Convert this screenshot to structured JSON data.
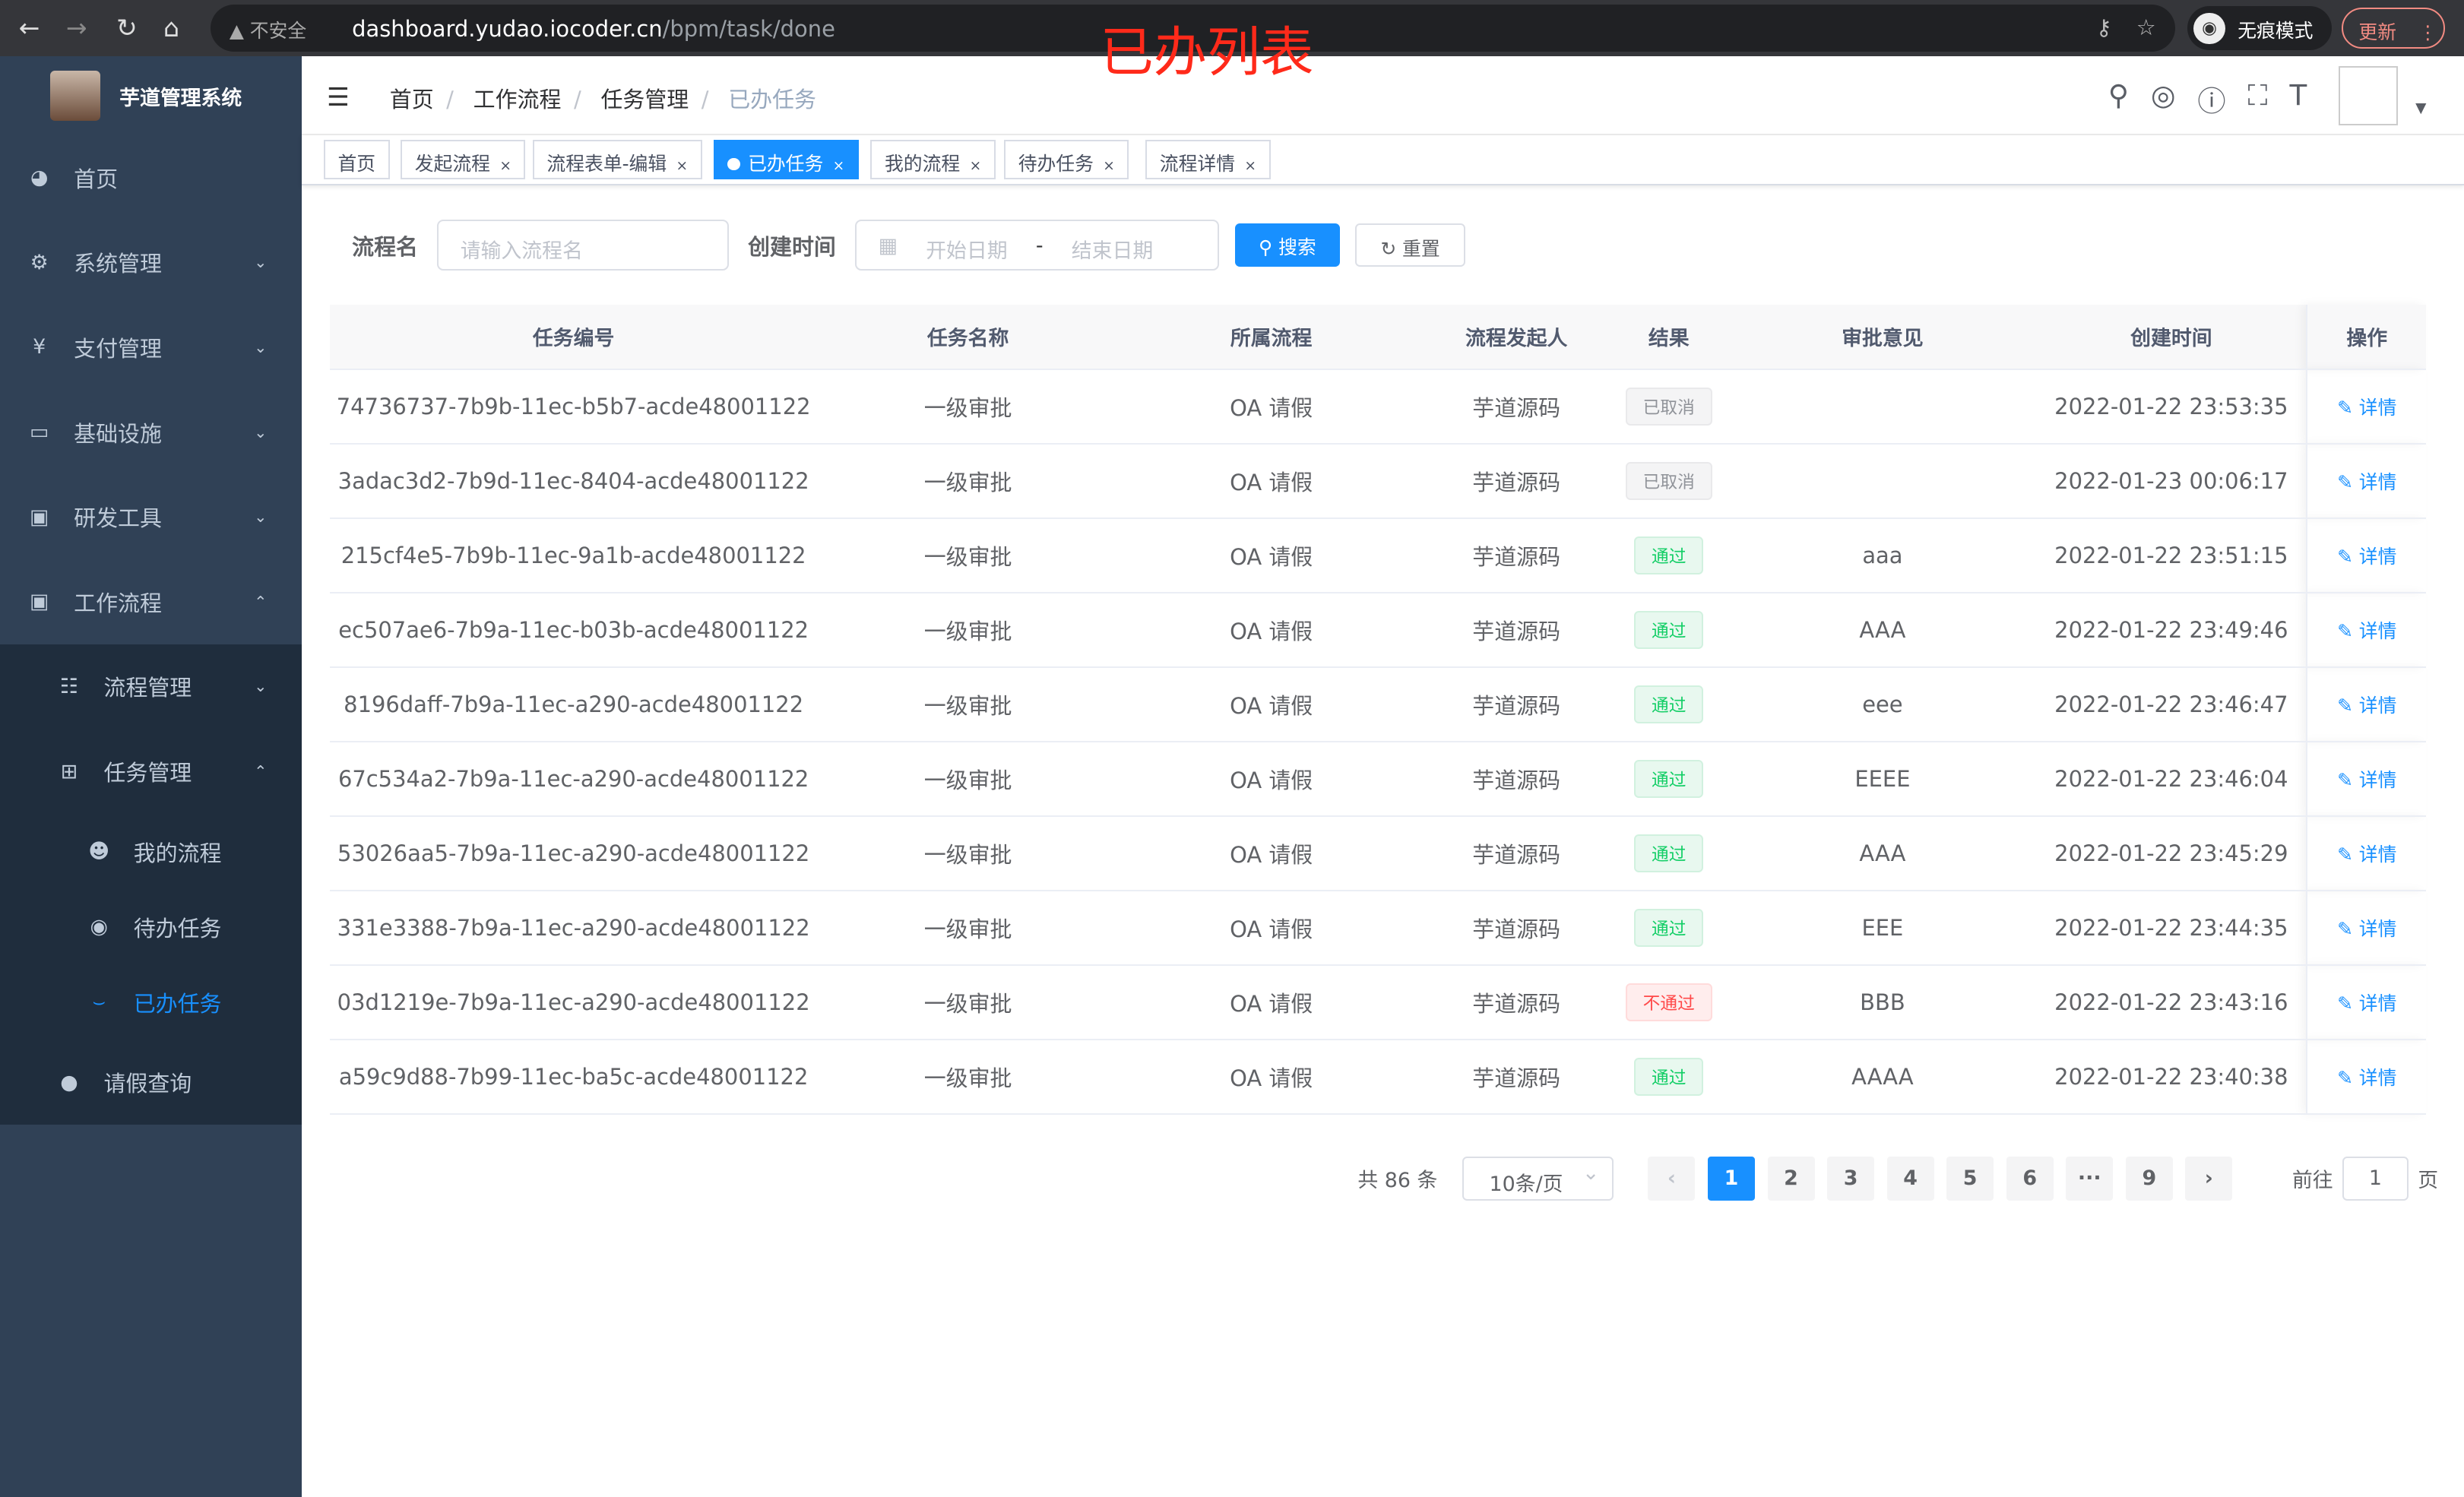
{
  "browser": {
    "security": "不安全",
    "url_host": "dashboard.yudao.iocoder.cn",
    "url_path": "/bpm/task/done",
    "incognito": "无痕模式",
    "update": "更新"
  },
  "annotation": "已办列表",
  "sidebar": {
    "title": "芋道管理系统",
    "items": [
      {
        "label": "首页",
        "icon": "dashboard-icon"
      },
      {
        "label": "系统管理",
        "icon": "gear-icon"
      },
      {
        "label": "支付管理",
        "icon": "yen-icon"
      },
      {
        "label": "基础设施",
        "icon": "monitor-icon"
      },
      {
        "label": "研发工具",
        "icon": "toolbox-icon"
      },
      {
        "label": "工作流程",
        "icon": "toolbox-icon"
      },
      {
        "label": "流程管理",
        "icon": "list-icon"
      },
      {
        "label": "任务管理",
        "icon": "tree-icon"
      },
      {
        "label": "我的流程",
        "icon": "people-icon"
      },
      {
        "label": "待办任务",
        "icon": "eye-icon"
      },
      {
        "label": "已办任务",
        "icon": "done-icon"
      },
      {
        "label": "请假查询",
        "icon": "user-icon"
      }
    ]
  },
  "breadcrumb": [
    "首页",
    "工作流程",
    "任务管理",
    "已办任务"
  ],
  "tabs": [
    "首页",
    "发起流程",
    "流程表单-编辑",
    "已办任务",
    "我的流程",
    "待办任务",
    "流程详情"
  ],
  "form": {
    "name_label": "流程名",
    "name_placeholder": "请输入流程名",
    "time_label": "创建时间",
    "start_placeholder": "开始日期",
    "sep": "-",
    "end_placeholder": "结束日期",
    "search": "搜索",
    "reset": "重置"
  },
  "table": {
    "headers": [
      "任务编号",
      "任务名称",
      "所属流程",
      "流程发起人",
      "结果",
      "审批意见",
      "创建时间",
      "操作"
    ],
    "action": "详情",
    "rows": [
      [
        "74736737-7b9b-11ec-b5b7-acde48001122",
        "一级审批",
        "OA 请假",
        "芋道源码",
        "已取消",
        "",
        "2022-01-22 23:53:35",
        "cancel"
      ],
      [
        "3adac3d2-7b9d-11ec-8404-acde48001122",
        "一级审批",
        "OA 请假",
        "芋道源码",
        "已取消",
        "",
        "2022-01-23 00:06:17",
        "cancel"
      ],
      [
        "215cf4e5-7b9b-11ec-9a1b-acde48001122",
        "一级审批",
        "OA 请假",
        "芋道源码",
        "通过",
        "aaa",
        "2022-01-22 23:51:15",
        "pass"
      ],
      [
        "ec507ae6-7b9a-11ec-b03b-acde48001122",
        "一级审批",
        "OA 请假",
        "芋道源码",
        "通过",
        "AAA",
        "2022-01-22 23:49:46",
        "pass"
      ],
      [
        "8196daff-7b9a-11ec-a290-acde48001122",
        "一级审批",
        "OA 请假",
        "芋道源码",
        "通过",
        "eee",
        "2022-01-22 23:46:47",
        "pass"
      ],
      [
        "67c534a2-7b9a-11ec-a290-acde48001122",
        "一级审批",
        "OA 请假",
        "芋道源码",
        "通过",
        "EEEE",
        "2022-01-22 23:46:04",
        "pass"
      ],
      [
        "53026aa5-7b9a-11ec-a290-acde48001122",
        "一级审批",
        "OA 请假",
        "芋道源码",
        "通过",
        "AAA",
        "2022-01-22 23:45:29",
        "pass"
      ],
      [
        "331e3388-7b9a-11ec-a290-acde48001122",
        "一级审批",
        "OA 请假",
        "芋道源码",
        "通过",
        "EEE",
        "2022-01-22 23:44:35",
        "pass"
      ],
      [
        "03d1219e-7b9a-11ec-a290-acde48001122",
        "一级审批",
        "OA 请假",
        "芋道源码",
        "不通过",
        "BBB",
        "2022-01-22 23:43:16",
        "fail"
      ],
      [
        "a59c9d88-7b99-11ec-ba5c-acde48001122",
        "一级审批",
        "OA 请假",
        "芋道源码",
        "通过",
        "AAAA",
        "2022-01-22 23:40:38",
        "pass"
      ]
    ]
  },
  "pagination": {
    "total": "共 86 条",
    "page_size": "10条/页",
    "pages": [
      "1",
      "2",
      "3",
      "4",
      "5",
      "6",
      "···",
      "9"
    ],
    "current": "1",
    "goto_label": "前往",
    "goto_value": "1",
    "page_suffix": "页"
  }
}
